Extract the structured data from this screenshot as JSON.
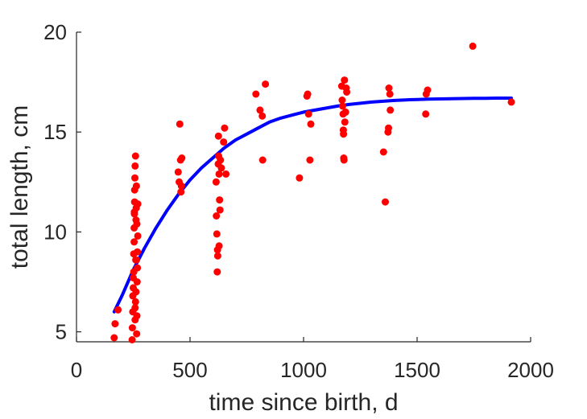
{
  "chart_data": {
    "type": "scatter",
    "title": "",
    "xlabel": "time since birth, d",
    "ylabel": "total length, cm",
    "xlim": [
      0,
      2000
    ],
    "ylim": [
      4.5,
      20
    ],
    "xticks": [
      "0",
      "500",
      "1000",
      "1500",
      "2000"
    ],
    "yticks": [
      "5",
      "10",
      "15",
      "20"
    ],
    "grid": false,
    "series": [
      {
        "kind": "scatter",
        "color": "#ff0000",
        "points": [
          [
            166,
            4.7
          ],
          [
            170,
            5.4
          ],
          [
            183,
            6.1
          ],
          [
            245,
            4.6
          ],
          [
            246,
            5.2
          ],
          [
            248,
            6.0
          ],
          [
            248,
            6.8
          ],
          [
            250,
            7.2
          ],
          [
            250,
            7.7
          ],
          [
            252,
            8.0
          ],
          [
            252,
            8.9
          ],
          [
            254,
            9.5
          ],
          [
            254,
            10.2
          ],
          [
            255,
            11.0
          ],
          [
            256,
            11.5
          ],
          [
            256,
            12.1
          ],
          [
            257,
            12.7
          ],
          [
            258,
            13.3
          ],
          [
            260,
            13.8
          ],
          [
            258,
            5.6
          ],
          [
            260,
            6.5
          ],
          [
            261,
            8.6
          ],
          [
            262,
            10.6
          ],
          [
            263,
            11.2
          ],
          [
            264,
            12.3
          ],
          [
            265,
            4.9
          ],
          [
            266,
            5.8
          ],
          [
            267,
            7.5
          ],
          [
            268,
            8.2
          ],
          [
            268,
            9.0
          ],
          [
            270,
            9.8
          ],
          [
            270,
            11.4
          ],
          [
            262,
            7.0
          ],
          [
            255,
            10.9
          ],
          [
            258,
            6.2
          ],
          [
            264,
            8.6
          ],
          [
            266,
            10.4
          ],
          [
            448,
            13.0
          ],
          [
            452,
            12.5
          ],
          [
            455,
            15.4
          ],
          [
            458,
            13.6
          ],
          [
            460,
            12.0
          ],
          [
            462,
            12.3
          ],
          [
            464,
            13.7
          ],
          [
            615,
            12.5
          ],
          [
            616,
            10.8
          ],
          [
            618,
            9.9
          ],
          [
            620,
            8.0
          ],
          [
            621,
            9.1
          ],
          [
            622,
            8.8
          ],
          [
            624,
            13.4
          ],
          [
            625,
            14.8
          ],
          [
            626,
            13.8
          ],
          [
            628,
            12.9
          ],
          [
            630,
            11.6
          ],
          [
            632,
            11.1
          ],
          [
            634,
            13.6
          ],
          [
            638,
            13.2
          ],
          [
            648,
            14.5
          ],
          [
            652,
            15.2
          ],
          [
            658,
            12.9
          ],
          [
            628,
            9.3
          ],
          [
            790,
            16.9
          ],
          [
            808,
            16.1
          ],
          [
            818,
            15.8
          ],
          [
            820,
            13.6
          ],
          [
            832,
            17.4
          ],
          [
            982,
            12.7
          ],
          [
            1015,
            16.8
          ],
          [
            1018,
            16.9
          ],
          [
            1022,
            15.9
          ],
          [
            1028,
            13.6
          ],
          [
            1032,
            15.4
          ],
          [
            1168,
            17.3
          ],
          [
            1170,
            16.6
          ],
          [
            1172,
            16.3
          ],
          [
            1174,
            15.9
          ],
          [
            1175,
            15.1
          ],
          [
            1176,
            14.9
          ],
          [
            1177,
            13.7
          ],
          [
            1178,
            13.6
          ],
          [
            1180,
            17.6
          ],
          [
            1182,
            15.5
          ],
          [
            1185,
            16.0
          ],
          [
            1188,
            17.2
          ],
          [
            1190,
            17.0
          ],
          [
            1352,
            14.0
          ],
          [
            1360,
            11.5
          ],
          [
            1372,
            15.0
          ],
          [
            1374,
            15.2
          ],
          [
            1376,
            17.2
          ],
          [
            1380,
            16.9
          ],
          [
            1382,
            16.1
          ],
          [
            1538,
            15.9
          ],
          [
            1540,
            16.9
          ],
          [
            1546,
            17.1
          ],
          [
            1745,
            19.3
          ],
          [
            1915,
            16.5
          ]
        ]
      },
      {
        "kind": "line",
        "color": "#0000ff",
        "x": [
          166,
          200,
          250,
          300,
          350,
          400,
          450,
          500,
          550,
          600,
          650,
          700,
          750,
          800,
          850,
          900,
          950,
          1000,
          1050,
          1100,
          1150,
          1200,
          1250,
          1300,
          1350,
          1400,
          1450,
          1500,
          1550,
          1600,
          1650,
          1700,
          1750,
          1800,
          1850,
          1900,
          1915
        ],
        "y": [
          6.0,
          6.8,
          8.1,
          9.2,
          10.2,
          11.1,
          11.9,
          12.6,
          13.2,
          13.7,
          14.2,
          14.6,
          14.9,
          15.2,
          15.5,
          15.7,
          15.85,
          16.0,
          16.1,
          16.2,
          16.3,
          16.38,
          16.44,
          16.5,
          16.54,
          16.58,
          16.61,
          16.63,
          16.65,
          16.66,
          16.67,
          16.68,
          16.69,
          16.69,
          16.7,
          16.7,
          16.7
        ]
      }
    ]
  }
}
